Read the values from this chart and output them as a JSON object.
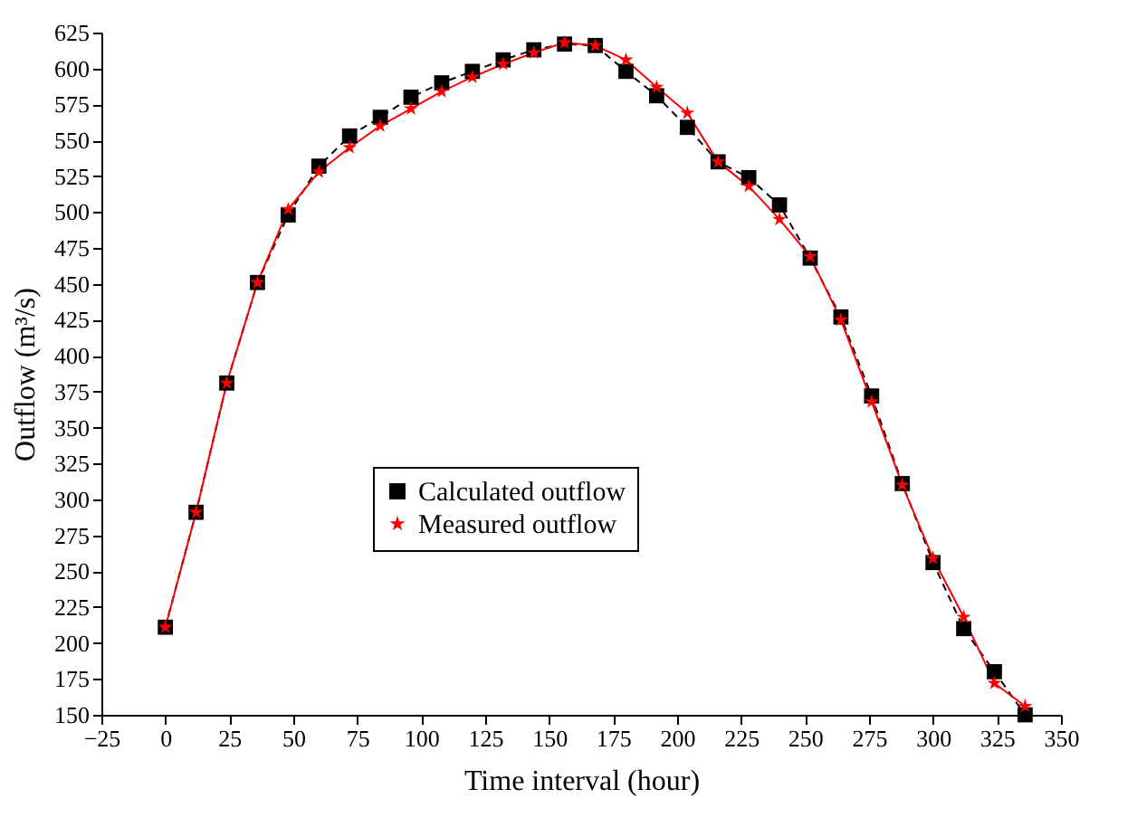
{
  "chart_data": {
    "type": "line",
    "xlabel": "Time interval (hour)",
    "ylabel": "Outflow (m³/s)",
    "x": [
      0,
      12,
      24,
      36,
      48,
      60,
      72,
      84,
      96,
      108,
      120,
      132,
      144,
      156,
      168,
      180,
      192,
      204,
      216,
      228,
      240,
      252,
      264,
      276,
      288,
      300,
      312,
      324,
      336
    ],
    "series": [
      {
        "name": "Calculated outflow",
        "color": "#000000",
        "marker": "square",
        "line_style": "dashed",
        "values": [
          211,
          291,
          381,
          451,
          498,
          532,
          553,
          566,
          580,
          590,
          598,
          606,
          613,
          617,
          616,
          598,
          581,
          559,
          535,
          524,
          505,
          468,
          427,
          372,
          311,
          256,
          210,
          180,
          150
        ]
      },
      {
        "name": "Measured outflow",
        "color": "#ff0000",
        "marker": "star",
        "line_style": "solid",
        "values": [
          211,
          291,
          381,
          451,
          502,
          528,
          545,
          560,
          572,
          584,
          594,
          603,
          611,
          618,
          616,
          606,
          587,
          569,
          535,
          518,
          495,
          469,
          425,
          368,
          310,
          259,
          218,
          172,
          156
        ]
      }
    ],
    "xlim": [
      -25,
      350
    ],
    "xticks": [
      -25,
      0,
      25,
      50,
      75,
      100,
      125,
      150,
      175,
      200,
      225,
      250,
      275,
      300,
      325,
      350
    ],
    "ylim": [
      150,
      625
    ],
    "yticks": [
      150,
      175,
      200,
      225,
      250,
      275,
      300,
      325,
      350,
      375,
      400,
      425,
      450,
      475,
      500,
      525,
      550,
      575,
      600,
      625
    ],
    "grid": false,
    "legend": "center"
  }
}
